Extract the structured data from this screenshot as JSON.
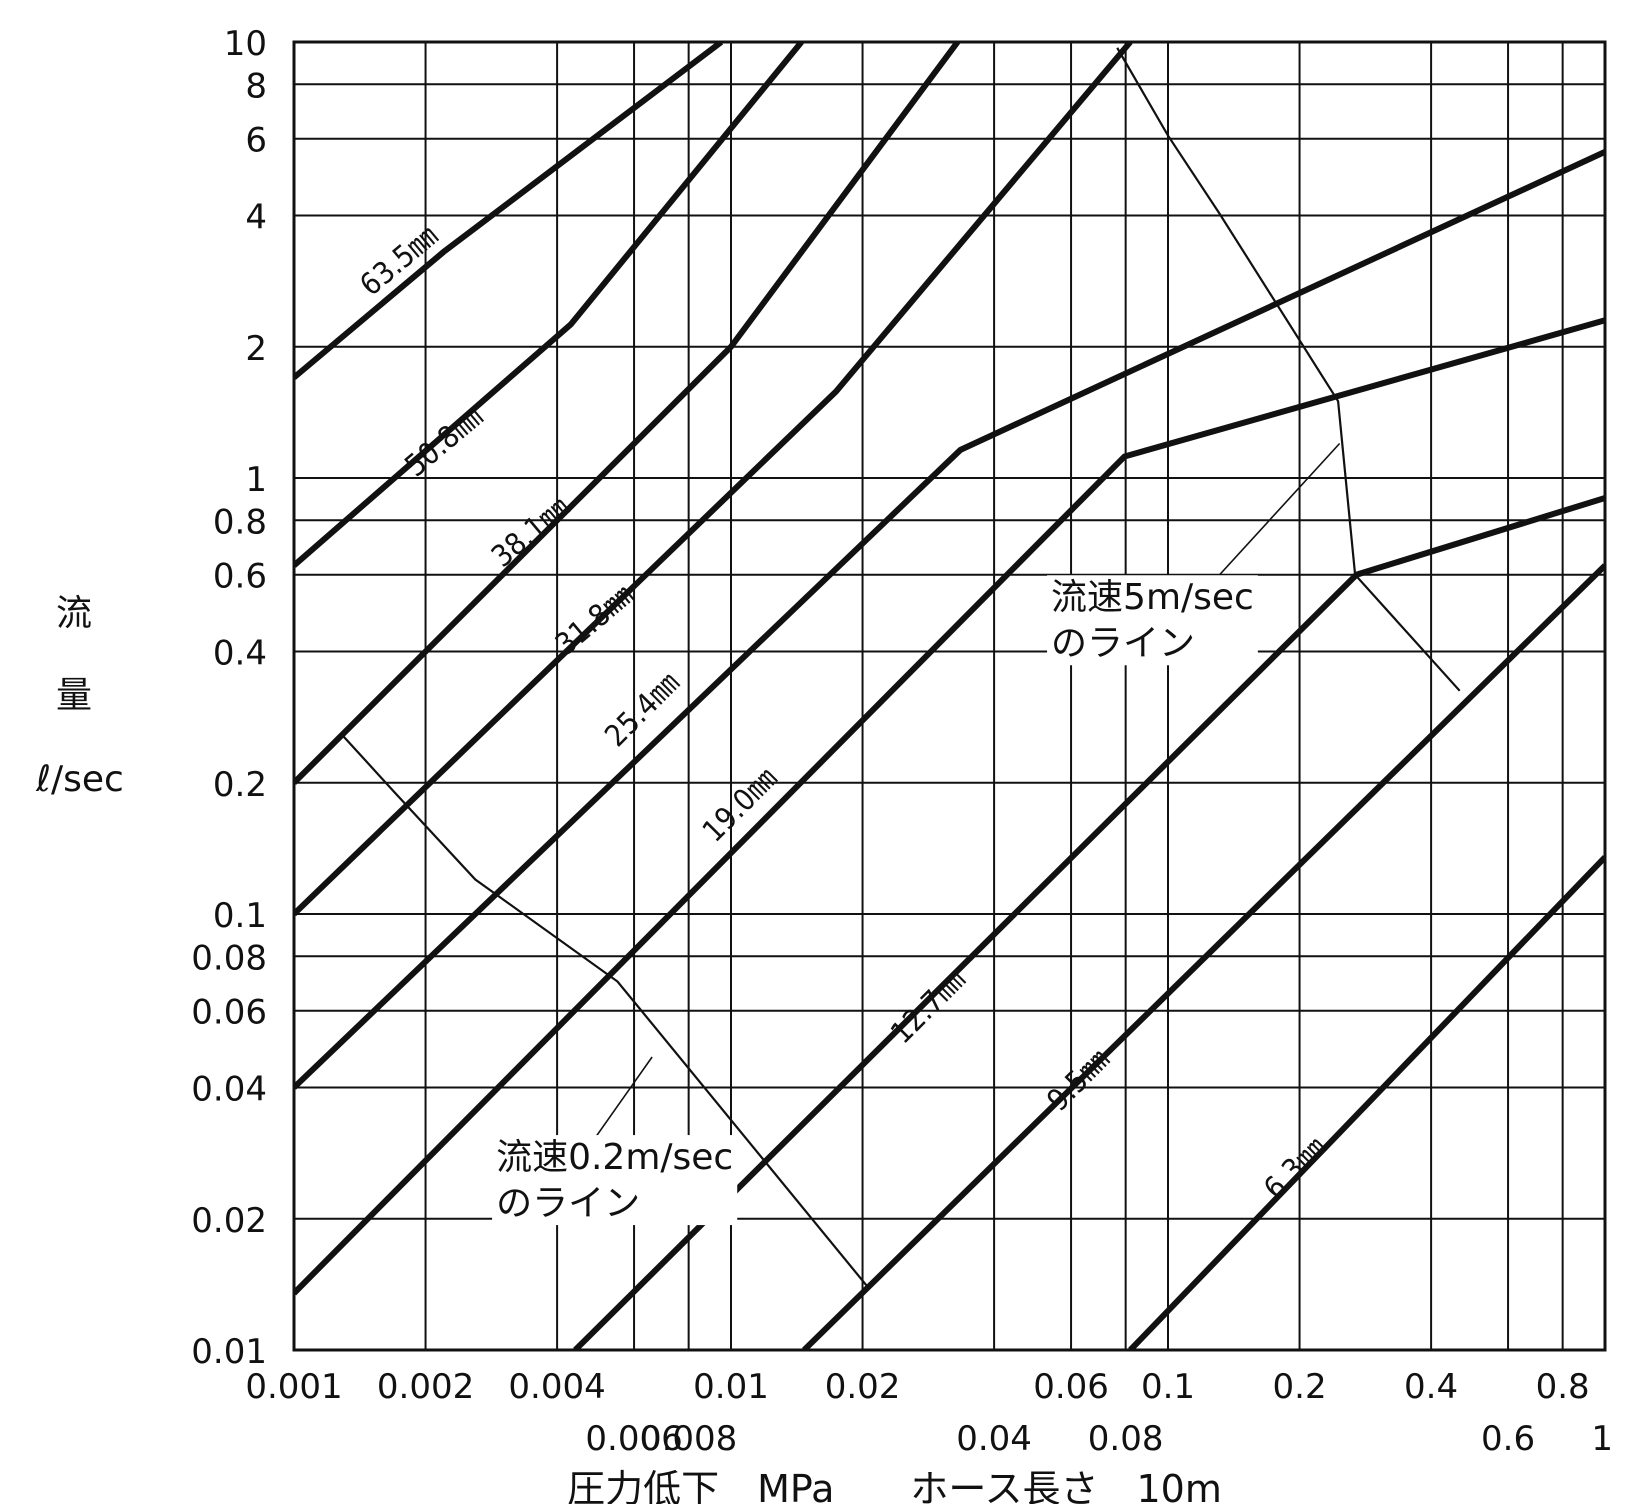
{
  "chart_data": {
    "type": "line",
    "x_scale": "log",
    "y_scale": "log",
    "xlim": [
      0.001,
      1
    ],
    "ylim": [
      0.01,
      10
    ],
    "grid": true,
    "xlabel": "圧力低下　MPa　　ホース長さ　10m",
    "ylabel": [
      "流",
      "量",
      "ℓ/sec"
    ],
    "x_ticks": [
      {
        "v": 0.001,
        "label": "0.001",
        "row": 1
      },
      {
        "v": 0.002,
        "label": "0.002",
        "row": 1
      },
      {
        "v": 0.004,
        "label": "0.004",
        "row": 1
      },
      {
        "v": 0.006,
        "label": "0.006",
        "row": 2
      },
      {
        "v": 0.008,
        "label": "0.008",
        "row": 2
      },
      {
        "v": 0.01,
        "label": "0.01",
        "row": 1
      },
      {
        "v": 0.02,
        "label": "0.02",
        "row": 1
      },
      {
        "v": 0.04,
        "label": "0.04",
        "row": 2
      },
      {
        "v": 0.06,
        "label": "0.06",
        "row": 1
      },
      {
        "v": 0.08,
        "label": "0.08",
        "row": 2
      },
      {
        "v": 0.1,
        "label": "0.1",
        "row": 1
      },
      {
        "v": 0.2,
        "label": "0.2",
        "row": 1
      },
      {
        "v": 0.4,
        "label": "0.4",
        "row": 1
      },
      {
        "v": 0.6,
        "label": "0.6",
        "row": 2
      },
      {
        "v": 0.8,
        "label": "0.8",
        "row": 1
      },
      {
        "v": 1,
        "label": "1",
        "row": 2
      }
    ],
    "y_ticks": [
      {
        "v": 0.01,
        "label": "0.01"
      },
      {
        "v": 0.02,
        "label": "0.02"
      },
      {
        "v": 0.04,
        "label": "0.04"
      },
      {
        "v": 0.06,
        "label": "0.06"
      },
      {
        "v": 0.08,
        "label": "0.08"
      },
      {
        "v": 0.1,
        "label": "0.1"
      },
      {
        "v": 0.2,
        "label": "0.2"
      },
      {
        "v": 0.4,
        "label": "0.4"
      },
      {
        "v": 0.6,
        "label": "0.6"
      },
      {
        "v": 0.8,
        "label": "0.8"
      },
      {
        "v": 1,
        "label": "1"
      },
      {
        "v": 2,
        "label": "2"
      },
      {
        "v": 4,
        "label": "4"
      },
      {
        "v": 6,
        "label": "6"
      },
      {
        "v": 8,
        "label": "8"
      },
      {
        "v": 10,
        "label": "10"
      }
    ],
    "series": [
      {
        "name": "63.5㎜",
        "points": [
          [
            0.001,
            1.7
          ],
          [
            0.0022,
            3.3
          ],
          [
            0.0095,
            10
          ]
        ]
      },
      {
        "name": "50.8㎜",
        "points": [
          [
            0.001,
            0.63
          ],
          [
            0.0043,
            2.25
          ],
          [
            0.0145,
            10
          ]
        ]
      },
      {
        "name": "38.1㎜",
        "points": [
          [
            0.001,
            0.2
          ],
          [
            0.01,
            2
          ],
          [
            0.033,
            10
          ]
        ]
      },
      {
        "name": "31.8㎜",
        "points": [
          [
            0.001,
            0.1
          ],
          [
            0.0174,
            1.58
          ],
          [
            0.082,
            10
          ]
        ]
      },
      {
        "name": "25.4㎜",
        "points": [
          [
            0.001,
            0.04
          ],
          [
            0.0335,
            1.16
          ],
          [
            1,
            5.6
          ]
        ]
      },
      {
        "name": "19.0㎜",
        "points": [
          [
            0.001,
            0.0135
          ],
          [
            0.0795,
            1.12
          ],
          [
            1,
            2.3
          ]
        ]
      },
      {
        "name": "12.7㎜",
        "points": [
          [
            0.0044,
            0.01
          ],
          [
            0.27,
            0.6
          ],
          [
            1,
            0.9
          ]
        ]
      },
      {
        "name": "9.5㎜",
        "points": [
          [
            0.0147,
            0.01
          ],
          [
            1,
            0.63
          ]
        ]
      },
      {
        "name": "6.3㎜",
        "points": [
          [
            0.082,
            0.01
          ],
          [
            1,
            0.135
          ]
        ]
      }
    ],
    "series_label_positions": [
      {
        "text": "63.5㎜",
        "v": [
          0.0015,
          2.6
        ],
        "angle": -40
      },
      {
        "text": "50.8㎜",
        "v": [
          0.0019,
          1.0
        ],
        "angle": -40
      },
      {
        "text": "38.1㎜",
        "v": [
          0.003,
          0.62
        ],
        "angle": -40
      },
      {
        "text": "31.8㎜",
        "v": [
          0.0042,
          0.39
        ],
        "angle": -40
      },
      {
        "text": "25.4㎜",
        "v": [
          0.0055,
          0.24
        ],
        "angle": -45
      },
      {
        "text": "19.0㎜",
        "v": [
          0.0092,
          0.145
        ],
        "angle": -45
      },
      {
        "text": "12.7㎜",
        "v": [
          0.0248,
          0.05
        ],
        "angle": -45
      },
      {
        "text": "9.5㎜",
        "v": [
          0.0565,
          0.035
        ],
        "angle": -45
      },
      {
        "text": "6.3㎜",
        "v": [
          0.177,
          0.022
        ],
        "angle": -45
      }
    ],
    "reference_lines": [
      {
        "name": "流速5m/sec",
        "points": [
          [
            0.0765,
            9.7
          ],
          [
            0.1,
            6.1
          ],
          [
            0.131,
            4.05
          ],
          [
            0.245,
            1.5
          ],
          [
            0.268,
            0.6
          ],
          [
            0.465,
            0.325
          ]
        ]
      },
      {
        "name": "流速0.2m/sec",
        "points": [
          [
            0.0013,
            0.255
          ],
          [
            0.0017,
            0.19
          ],
          [
            0.0026,
            0.12
          ],
          [
            0.0055,
            0.07
          ],
          [
            0.0205,
            0.014
          ]
        ]
      }
    ],
    "annotations": [
      {
        "line1": "流速5m/sec",
        "line2": "のライン",
        "v": [
          0.054,
          0.5
        ],
        "leader": [
          [
            0.105,
            0.47
          ],
          [
            0.247,
            1.2
          ]
        ]
      },
      {
        "line1": "流速0.2m/sec",
        "line2": "のライン",
        "v": [
          0.0029,
          0.026
        ],
        "leader": [
          [
            0.0047,
            0.029
          ],
          [
            0.0066,
            0.047
          ]
        ]
      }
    ]
  }
}
